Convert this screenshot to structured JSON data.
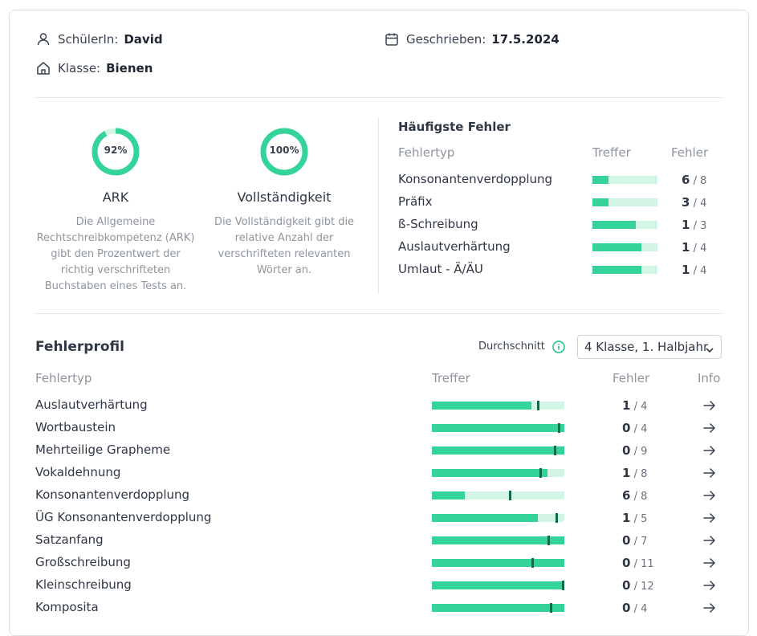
{
  "header": {
    "student_label": "SchülerIn:",
    "student_value": "David",
    "class_label": "Klasse:",
    "class_value": "Bienen",
    "written_label": "Geschrieben:",
    "written_value": "17.5.2024"
  },
  "metrics": [
    {
      "value_text": "92%",
      "value": 0.92,
      "title": "ARK",
      "description": "Die Allgemeine Rechtschreibkompetenz (ARK) gibt den Prozentwert der richtig verschrifteten Buchstaben eines Tests an."
    },
    {
      "value_text": "100%",
      "value": 1.0,
      "title": "Vollständigkeit",
      "description": "Die Vollständigkeit gibt die relative Anzahl der verschrifteten relevanten Wörter an."
    }
  ],
  "frequent_errors": {
    "title": "Häufigste Fehler",
    "col_type": "Fehlertyp",
    "col_hits": "Treffer",
    "col_errors": "Fehler",
    "rows": [
      {
        "label": "Konsonantenverdopplung",
        "errors": "6",
        "total": "/ 8",
        "hit_fraction": 0.25
      },
      {
        "label": "Präfix",
        "errors": "3",
        "total": "/ 4",
        "hit_fraction": 0.25
      },
      {
        "label": "ß-Schreibung",
        "errors": "1",
        "total": "/ 3",
        "hit_fraction": 0.667
      },
      {
        "label": "Auslautverhärtung",
        "errors": "1",
        "total": "/ 4",
        "hit_fraction": 0.75
      },
      {
        "label": "Umlaut - Ä/ÄU",
        "errors": "1",
        "total": "/ 4",
        "hit_fraction": 0.75
      }
    ]
  },
  "profile": {
    "title": "Fehlerprofil",
    "average_label": "Durchschnitt",
    "select_value": "4 Klasse, 1. Halbjahr",
    "col_type": "Fehlertyp",
    "col_hits": "Treffer",
    "col_errors": "Fehler",
    "col_info": "Info",
    "rows": [
      {
        "label": "Auslautverhärtung",
        "errors": "1",
        "total": "/ 4",
        "hit_fraction": 0.75,
        "average": 0.8
      },
      {
        "label": "Wortbaustein",
        "errors": "0",
        "total": "/ 4",
        "hit_fraction": 1.0,
        "average": 0.96
      },
      {
        "label": "Mehrteilige Grapheme",
        "errors": "0",
        "total": "/ 9",
        "hit_fraction": 1.0,
        "average": 0.93
      },
      {
        "label": "Vokaldehnung",
        "errors": "1",
        "total": "/ 8",
        "hit_fraction": 0.875,
        "average": 0.82
      },
      {
        "label": "Konsonantenverdopplung",
        "errors": "6",
        "total": "/ 8",
        "hit_fraction": 0.25,
        "average": 0.59
      },
      {
        "label": "ÜG Konsonantenverdopplung",
        "errors": "1",
        "total": "/ 5",
        "hit_fraction": 0.8,
        "average": 0.94
      },
      {
        "label": "Satzanfang",
        "errors": "0",
        "total": "/ 7",
        "hit_fraction": 1.0,
        "average": 0.88
      },
      {
        "label": "Großschreibung",
        "errors": "0",
        "total": "/ 11",
        "hit_fraction": 1.0,
        "average": 0.76
      },
      {
        "label": "Kleinschreibung",
        "errors": "0",
        "total": "/ 12",
        "hit_fraction": 1.0,
        "average": 0.99
      },
      {
        "label": "Komposita",
        "errors": "0",
        "total": "/ 4",
        "hit_fraction": 1.0,
        "average": 0.9
      }
    ]
  },
  "colors": {
    "accent": "#34d399",
    "track": "#d3f5e5",
    "marker": "#0f6b45"
  }
}
